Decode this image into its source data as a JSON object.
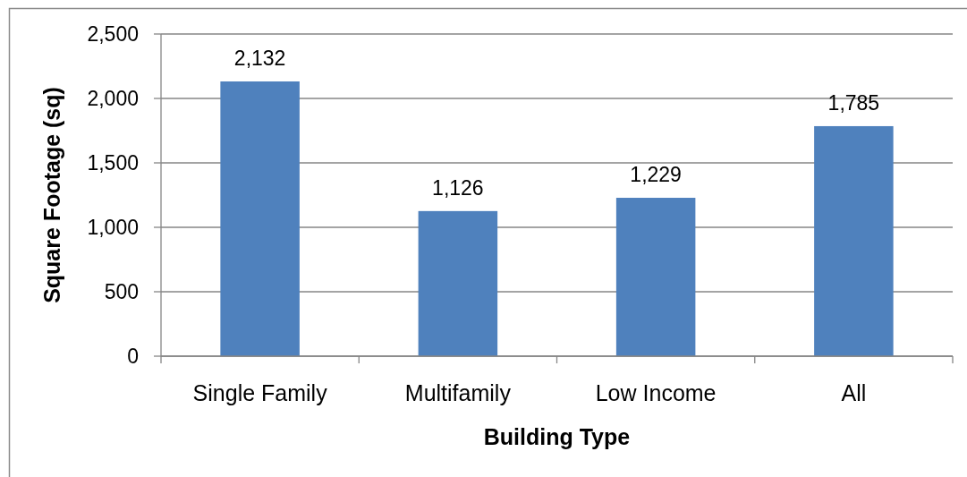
{
  "chart_data": {
    "type": "bar",
    "xlabel": "Building Type",
    "ylabel": "Square Footage (sq)",
    "categories": [
      "Single Family",
      "Multifamily",
      "Low Income",
      "All"
    ],
    "values": [
      2132,
      1126,
      1229,
      1785
    ],
    "color": "#4f81bd",
    "value_labels": [
      "2,132",
      "1,126",
      "1,229",
      "1,785"
    ],
    "ylim": [
      0,
      2500
    ],
    "yticks": [
      0,
      500,
      {
        "value": 1000,
        "label": "1,000"
      },
      {
        "value": 1500,
        "label": "1,500"
      },
      {
        "value": 2000,
        "label": "2,000"
      },
      {
        "value": 2500,
        "label": "2,500"
      }
    ],
    "grid": "y"
  }
}
